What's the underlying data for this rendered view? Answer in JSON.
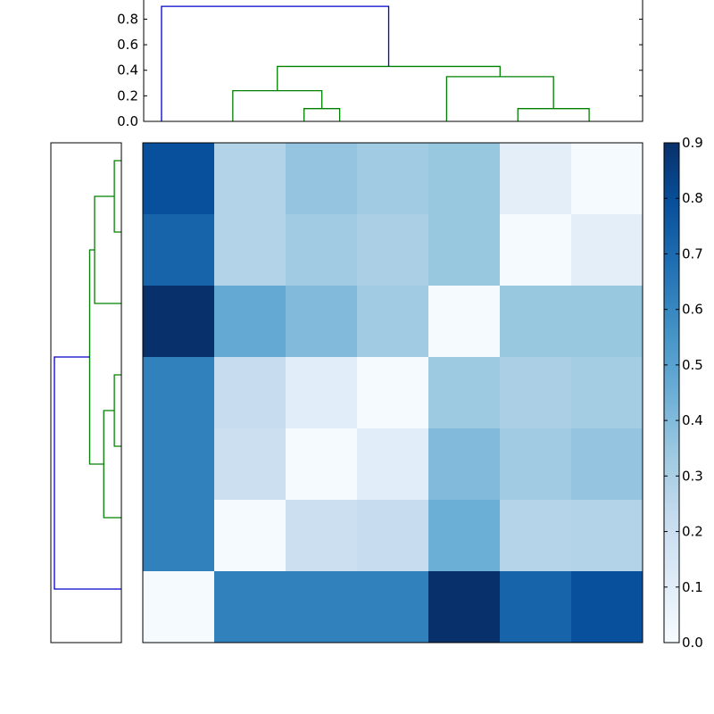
{
  "chart_data": [
    {
      "type": "dendrogram",
      "title": "",
      "orientation": "top",
      "ylim": [
        0,
        0.95
      ],
      "yticks": [
        "0.0",
        "0.2",
        "0.4",
        "0.6",
        "0.8"
      ],
      "links": [
        {
          "x": [
            5,
            5,
            6,
            6
          ],
          "y": [
            0.0,
            0.1,
            0.1,
            0.0
          ],
          "color": "#008000"
        },
        {
          "x": [
            3,
            3,
            5.5,
            5.5
          ],
          "y": [
            0.0,
            0.24,
            0.24,
            0.1
          ],
          "color": "#008000"
        },
        {
          "x": [
            11,
            11,
            13,
            13
          ],
          "y": [
            0.0,
            0.1,
            0.1,
            0.0
          ],
          "color": "#008000"
        },
        {
          "x": [
            9,
            9,
            12,
            12
          ],
          "y": [
            0.0,
            0.35,
            0.35,
            0.1
          ],
          "color": "#008000"
        },
        {
          "x": [
            4.25,
            4.25,
            10.5,
            10.5
          ],
          "y": [
            0.24,
            0.43,
            0.43,
            0.35
          ],
          "color": "#008000"
        },
        {
          "x": [
            1,
            1,
            7.375,
            7.375
          ],
          "y": [
            0.0,
            0.9,
            0.9,
            0.43
          ],
          "color": "#0000cc"
        }
      ]
    },
    {
      "type": "dendrogram",
      "title": "",
      "orientation": "left",
      "links": [
        {
          "y": [
            1,
            1,
            3,
            3
          ],
          "x": [
            0.0,
            0.1,
            0.1,
            0.0
          ],
          "color": "#008000"
        },
        {
          "y": [
            2,
            2,
            5,
            5
          ],
          "x": [
            0.1,
            0.38,
            0.38,
            0.0
          ],
          "color": "#008000"
        },
        {
          "y": [
            7,
            7,
            9,
            9
          ],
          "x": [
            0.0,
            0.1,
            0.1,
            0.0
          ],
          "color": "#008000"
        },
        {
          "y": [
            8,
            8,
            11,
            11
          ],
          "x": [
            0.1,
            0.25,
            0.25,
            0.0
          ],
          "color": "#008000"
        },
        {
          "y": [
            3.5,
            3.5,
            9.5,
            9.5
          ],
          "x": [
            0.38,
            0.45,
            0.45,
            0.25
          ],
          "color": "#008000"
        },
        {
          "y": [
            6.5,
            6.5,
            13,
            13
          ],
          "x": [
            0.45,
            0.95,
            0.95,
            0.0
          ],
          "color": "#0000cc"
        }
      ]
    },
    {
      "type": "heatmap",
      "title": "",
      "xlabel": "",
      "ylabel": "",
      "colormap": "Blues",
      "vmin": 0.0,
      "vmax": 0.9,
      "colorbar_ticks": [
        "0.0",
        "0.1",
        "0.2",
        "0.3",
        "0.4",
        "0.5",
        "0.6",
        "0.7",
        "0.8",
        "0.9"
      ],
      "matrix": [
        [
          0.79,
          0.28,
          0.36,
          0.33,
          0.35,
          0.09,
          0.01
        ],
        [
          0.72,
          0.28,
          0.33,
          0.3,
          0.35,
          0.01,
          0.09
        ],
        [
          0.9,
          0.47,
          0.4,
          0.33,
          0.01,
          0.35,
          0.35
        ],
        [
          0.62,
          0.22,
          0.1,
          0.01,
          0.34,
          0.3,
          0.32
        ],
        [
          0.62,
          0.2,
          0.01,
          0.1,
          0.4,
          0.33,
          0.36
        ],
        [
          0.62,
          0.01,
          0.2,
          0.22,
          0.45,
          0.27,
          0.28
        ],
        [
          0.01,
          0.62,
          0.62,
          0.62,
          0.9,
          0.72,
          0.79
        ]
      ]
    }
  ]
}
